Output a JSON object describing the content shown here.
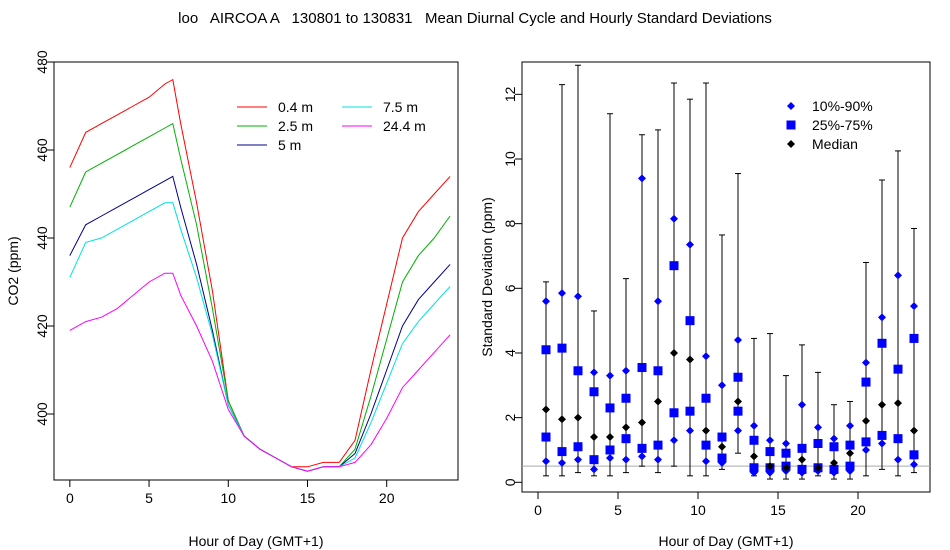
{
  "title": "loo   AIRCOA A   130801 to 130831   Mean Diurnal Cycle and Hourly Standard Deviations",
  "chart_data": [
    {
      "type": "line",
      "title": "",
      "xlabel": "Hour of Day (GMT+1)",
      "ylabel": "CO2 (ppm)",
      "xlim": [
        -1,
        24.5
      ],
      "ylim": [
        385,
        480
      ],
      "xticks": [
        0,
        5,
        10,
        15,
        20
      ],
      "yticks": [
        400,
        420,
        440,
        460,
        480
      ],
      "grid": false,
      "legend_position": "top-right",
      "x": [
        0,
        1,
        2,
        3,
        4,
        5,
        6,
        6.5,
        7,
        8,
        9,
        10,
        11,
        12,
        13,
        14,
        15,
        16,
        17,
        18,
        19,
        20,
        21,
        22,
        23,
        24
      ],
      "series": [
        {
          "name": "0.4 m",
          "color": "#ff0000",
          "values": [
            456,
            464,
            466,
            468,
            470,
            472,
            475,
            476,
            466,
            448,
            428,
            403,
            395,
            392,
            390,
            388,
            388,
            389,
            389,
            394,
            410,
            425,
            440,
            446,
            450,
            454
          ]
        },
        {
          "name": "2.5 m",
          "color": "#00b000",
          "values": [
            447,
            455,
            457,
            459,
            461,
            463,
            465,
            466,
            458,
            443,
            424,
            403,
            395,
            392,
            390,
            388,
            387,
            388,
            388,
            392,
            404,
            417,
            430,
            436,
            440,
            445
          ]
        },
        {
          "name": "5 m",
          "color": "#00008b",
          "values": [
            436,
            443,
            445,
            447,
            449,
            451,
            453,
            454,
            447,
            434,
            419,
            402,
            395,
            392,
            390,
            388,
            387,
            388,
            388,
            391,
            400,
            410,
            420,
            426,
            430,
            434
          ]
        },
        {
          "name": "7.5 m",
          "color": "#00e0e0",
          "values": [
            431,
            439,
            440,
            442,
            444,
            446,
            448,
            448,
            442,
            431,
            418,
            402,
            395,
            392,
            390,
            388,
            387,
            388,
            388,
            390,
            398,
            407,
            416,
            421,
            425,
            429
          ]
        },
        {
          "name": "24.4 m",
          "color": "#ff00ff",
          "values": [
            419,
            421,
            422,
            424,
            427,
            430,
            432,
            432,
            427,
            420,
            412,
            401,
            395,
            392,
            390,
            388,
            387,
            388,
            388,
            389,
            393,
            399,
            406,
            410,
            414,
            418
          ]
        }
      ]
    },
    {
      "type": "scatter",
      "title": "",
      "xlabel": "Hour of Day (GMT+1)",
      "ylabel": "Standard Deviation (ppm)",
      "xlim": [
        -1,
        24.5
      ],
      "ylim": [
        -0.3,
        13
      ],
      "xticks": [
        0,
        5,
        10,
        15,
        20
      ],
      "yticks": [
        0,
        2,
        4,
        6,
        8,
        10,
        12
      ],
      "reference_line": 0.5,
      "grid": false,
      "legend_position": "top-right",
      "legend": [
        {
          "label": "10%-90%",
          "marker": "diamond",
          "color": "#0000ff"
        },
        {
          "label": "25%-75%",
          "marker": "square",
          "color": "#0000ff"
        },
        {
          "label": "Median",
          "marker": "diamond",
          "color": "#000000"
        }
      ],
      "x": [
        0.5,
        1.5,
        2.5,
        3.5,
        4.5,
        5.5,
        6.5,
        7.5,
        8.5,
        9.5,
        10.5,
        11.5,
        12.5,
        13.5,
        14.5,
        15.5,
        16.5,
        17.5,
        18.5,
        19.5,
        20.5,
        21.5,
        22.5,
        23.5
      ],
      "series": [
        {
          "name": "10%-90%",
          "low": [
            0.65,
            0.6,
            0.7,
            0.4,
            0.75,
            0.7,
            0.8,
            0.7,
            1.3,
            1.6,
            0.65,
            0.6,
            1.6,
            0.3,
            0.3,
            0.35,
            0.3,
            0.35,
            0.3,
            0.35,
            1.0,
            1.2,
            0.7,
            0.55
          ],
          "high": [
            5.6,
            5.85,
            5.75,
            3.4,
            3.3,
            3.45,
            9.4,
            5.6,
            8.15,
            7.35,
            3.9,
            3.0,
            4.4,
            1.75,
            1.3,
            1.2,
            2.4,
            1.7,
            1.35,
            1.75,
            3.7,
            5.1,
            6.4,
            5.45
          ]
        },
        {
          "name": "25%-75%",
          "low": [
            1.4,
            0.95,
            1.1,
            0.7,
            1.0,
            1.35,
            1.05,
            1.15,
            2.15,
            2.2,
            1.15,
            0.75,
            2.2,
            0.45,
            0.45,
            0.5,
            0.4,
            0.45,
            0.4,
            0.5,
            1.25,
            1.45,
            1.35,
            0.85
          ],
          "high": [
            4.1,
            4.15,
            3.45,
            2.8,
            2.3,
            2.6,
            3.55,
            3.45,
            6.7,
            5.0,
            2.6,
            1.4,
            3.25,
            1.3,
            0.95,
            0.9,
            1.05,
            1.2,
            1.1,
            1.15,
            3.1,
            4.3,
            3.5,
            4.45
          ]
        },
        {
          "name": "Median",
          "values": [
            2.25,
            1.95,
            2.0,
            1.4,
            1.4,
            1.7,
            1.85,
            2.5,
            4.0,
            3.8,
            1.6,
            1.1,
            2.5,
            0.8,
            0.5,
            0.45,
            0.7,
            0.45,
            0.6,
            0.9,
            1.9,
            2.4,
            2.45,
            1.6
          ]
        },
        {
          "name": "whisker",
          "low": [
            0.2,
            0.2,
            0.3,
            0.2,
            0.2,
            0.3,
            0.5,
            0.3,
            0.5,
            0.2,
            0.2,
            0.4,
            0.9,
            0.2,
            0.1,
            0.1,
            0.1,
            0.2,
            0.1,
            0.1,
            0.2,
            0.4,
            0.2,
            0.3
          ],
          "high": [
            6.2,
            12.3,
            12.9,
            5.3,
            11.4,
            6.3,
            10.75,
            10.9,
            12.35,
            11.85,
            12.35,
            7.65,
            9.55,
            4.45,
            4.6,
            3.3,
            4.25,
            3.4,
            2.4,
            2.5,
            6.8,
            9.35,
            10.25,
            7.85
          ]
        }
      ]
    }
  ]
}
